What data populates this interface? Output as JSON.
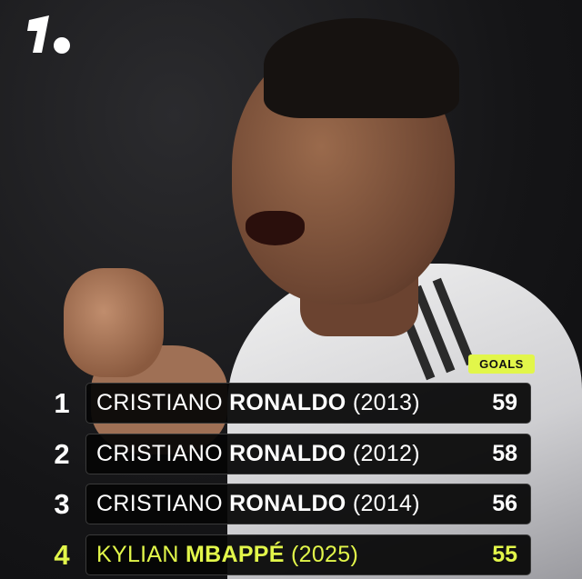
{
  "brand": {
    "logo": "1.",
    "logo_icon": "onefootball-logo"
  },
  "header": {
    "column_label": "GOALS"
  },
  "colors": {
    "accent": "#e2f64a",
    "row_bg": "#050505",
    "text": "#ffffff"
  },
  "rows": [
    {
      "rank": "1",
      "first": "CRISTIANO",
      "last": "RONALDO",
      "year": "(2013)",
      "goals": "59",
      "highlight": false
    },
    {
      "rank": "2",
      "first": "CRISTIANO",
      "last": "RONALDO",
      "year": "(2012)",
      "goals": "58",
      "highlight": false
    },
    {
      "rank": "3",
      "first": "CRISTIANO",
      "last": "RONALDO",
      "year": "(2014)",
      "goals": "56",
      "highlight": false
    },
    {
      "rank": "4",
      "first": "KYLIAN",
      "last": "MBAPPÉ",
      "year": "(2025)",
      "goals": "55",
      "highlight": true
    }
  ]
}
